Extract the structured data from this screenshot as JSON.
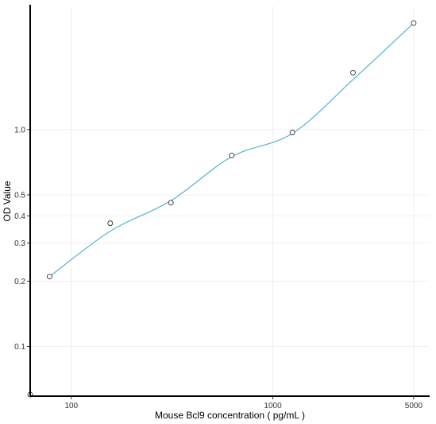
{
  "chart_data": {
    "type": "scatter",
    "title": "",
    "xlabel": "Mouse Bcl9 concentration ( pg/mL )",
    "ylabel": "OD Value",
    "x_scale": "log",
    "y_scale": "log",
    "xlim": [
      62.5,
      6000
    ],
    "ylim": [
      0.059,
      3.7
    ],
    "x_ticks": [
      {
        "value": 100,
        "label": "100"
      },
      {
        "value": 1000,
        "label": "1000"
      },
      {
        "value": 5000,
        "label": "5000"
      }
    ],
    "y_ticks": [
      {
        "value": 0.1,
        "label": "0.1"
      },
      {
        "value": 0.2,
        "label": "0.2"
      },
      {
        "value": 0.3,
        "label": "0.3"
      },
      {
        "value": 0.4,
        "label": "0.4"
      },
      {
        "value": 0.5,
        "label": "0.5"
      },
      {
        "value": 1.0,
        "label": "1.0"
      }
    ],
    "points": [
      {
        "x": 62.5,
        "y": 0.06
      },
      {
        "x": 78,
        "y": 0.21
      },
      {
        "x": 156,
        "y": 0.37
      },
      {
        "x": 312,
        "y": 0.46
      },
      {
        "x": 625,
        "y": 0.76
      },
      {
        "x": 1250,
        "y": 0.97
      },
      {
        "x": 2500,
        "y": 1.83
      },
      {
        "x": 5000,
        "y": 3.1
      }
    ],
    "curve": [
      {
        "x": 78,
        "y": 0.21
      },
      {
        "x": 156,
        "y": 0.34
      },
      {
        "x": 312,
        "y": 0.47
      },
      {
        "x": 625,
        "y": 0.75
      },
      {
        "x": 1250,
        "y": 0.96
      },
      {
        "x": 2500,
        "y": 1.7
      },
      {
        "x": 5000,
        "y": 3.1
      }
    ],
    "grid": true,
    "colors": {
      "curve": "#4fb3d8",
      "marker_edge": "#333333",
      "grid": "#f0f0f0",
      "axis": "#000000"
    }
  }
}
